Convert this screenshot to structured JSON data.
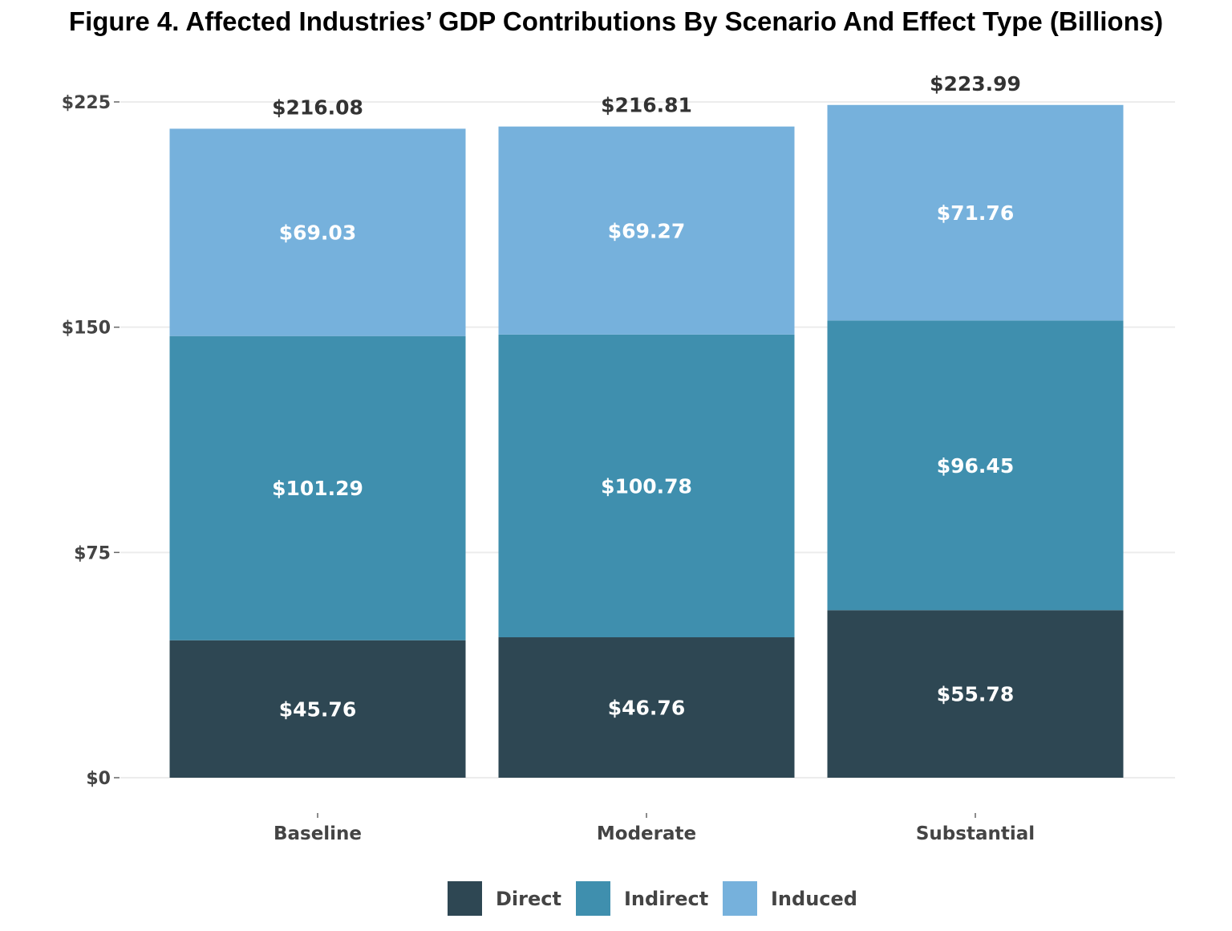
{
  "chart_data": {
    "type": "bar",
    "stacked": true,
    "title": "Figure 4. Affected Industries’ GDP Contributions By Scenario And Effect Type (Billions)",
    "xlabel": "",
    "ylabel": "",
    "categories": [
      "Baseline",
      "Moderate",
      "Substantial"
    ],
    "series": [
      {
        "name": "Direct",
        "color": "#2e4753",
        "values": [
          45.76,
          46.76,
          55.78
        ],
        "labels": [
          "$45.76",
          "$46.76",
          "$55.78"
        ]
      },
      {
        "name": "Indirect",
        "color": "#3f8fae",
        "values": [
          101.29,
          100.78,
          96.45
        ],
        "labels": [
          "$101.29",
          "$100.78",
          "$96.45"
        ]
      },
      {
        "name": "Induced",
        "color": "#76b1dc",
        "values": [
          69.03,
          69.27,
          71.76
        ],
        "labels": [
          "$69.03",
          "$69.27",
          "$71.76"
        ]
      }
    ],
    "totals": [
      216.08,
      216.81,
      223.99
    ],
    "total_labels": [
      "$216.08",
      "$216.81",
      "$223.99"
    ],
    "ylim": [
      0,
      225
    ],
    "yticks": [
      0,
      75,
      150,
      225
    ],
    "ytick_labels": [
      "$0",
      "$75",
      "$150",
      "$225"
    ],
    "grid": true,
    "legend_position": "bottom"
  }
}
